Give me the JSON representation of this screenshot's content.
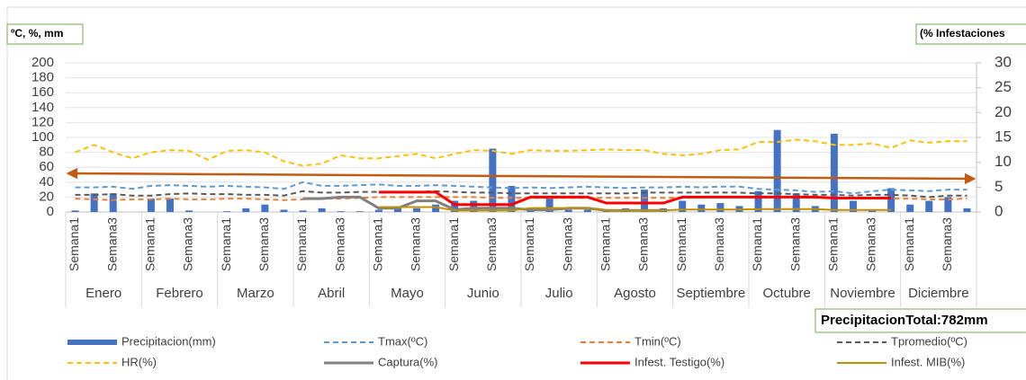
{
  "chart_data": {
    "type": "combo",
    "y_label": "ºC, %, mm",
    "y2_label": "(% Infestaciones",
    "annotation": "PrecipitacionTotal:782mm",
    "groups": [
      "Enero",
      "Febrero",
      "Marzo",
      "Abril",
      "Mayo",
      "Junio",
      "Julio",
      "Agosto",
      "Septiembre",
      "Octubre",
      "Noviembre",
      "Diciembre"
    ],
    "categories": [
      "Semana1",
      null,
      "Semana3",
      null,
      "Semana1",
      null,
      "Semana3",
      null,
      "Semana1",
      null,
      "Semana3",
      null,
      "Semana1",
      null,
      "Semana3",
      null,
      "Semana1",
      null,
      "Semana3",
      null,
      "Semana1",
      null,
      "Semana3",
      null,
      "Semana1",
      null,
      "Semana3",
      null,
      "Semana1",
      null,
      "Semana3",
      null,
      "Semana1",
      null,
      "Semana3",
      null,
      "Semana1",
      null,
      "Semana3",
      null,
      "Semana1",
      null,
      "Semana3",
      null,
      "Semana1",
      null,
      "Semana3",
      null
    ],
    "ylim": [
      0,
      200
    ],
    "yticks": [
      0,
      20,
      40,
      60,
      80,
      100,
      120,
      140,
      160,
      180,
      200
    ],
    "y2lim": [
      0,
      30
    ],
    "y2ticks": [
      0,
      5,
      10,
      15,
      20,
      25,
      30
    ],
    "grid": true,
    "series": [
      {
        "name": "Precipitacion(mm)",
        "type": "bar",
        "color": "#4472c4",
        "values": [
          2,
          25,
          25,
          0,
          18,
          18,
          2,
          0,
          1,
          5,
          10,
          3,
          2,
          5,
          1,
          1,
          3,
          5,
          5,
          10,
          15,
          15,
          85,
          35,
          5,
          18,
          3,
          3,
          3,
          5,
          30,
          5,
          15,
          10,
          12,
          8,
          28,
          110,
          25,
          8,
          105,
          15,
          3,
          32,
          10,
          15,
          20,
          5
        ]
      },
      {
        "name": "Tmax(ºC)",
        "type": "line",
        "dash": true,
        "color": "#5b9bd5",
        "values": [
          33,
          33,
          34,
          31,
          35,
          36,
          35,
          34,
          35,
          34,
          33,
          31,
          40,
          35,
          35,
          36,
          37,
          35,
          35,
          36,
          35,
          34,
          33,
          32,
          33,
          32,
          33,
          34,
          33,
          32,
          33,
          33,
          34,
          33,
          34,
          34,
          31,
          30,
          29,
          27,
          28,
          25,
          28,
          30,
          29,
          28,
          30,
          30
        ]
      },
      {
        "name": "Tmin(ºC)",
        "type": "line",
        "dash": true,
        "color": "#ed7d31",
        "values": [
          18,
          17,
          16,
          17,
          17,
          18,
          17,
          17,
          18,
          18,
          17,
          16,
          17,
          18,
          18,
          19,
          20,
          20,
          20,
          20,
          20,
          20,
          19,
          19,
          19,
          19,
          19,
          19,
          19,
          19,
          19,
          19,
          19,
          20,
          20,
          20,
          20,
          20,
          20,
          19,
          19,
          19,
          19,
          18,
          18,
          17,
          17,
          18
        ]
      },
      {
        "name": "Tpromedio(ºC)",
        "type": "line",
        "dash": true,
        "color": "#595959",
        "values": [
          23,
          23,
          24,
          22,
          22,
          24,
          25,
          24,
          24,
          23,
          23,
          22,
          28,
          26,
          26,
          27,
          27,
          27,
          27,
          28,
          27,
          26,
          26,
          25,
          25,
          25,
          25,
          25,
          25,
          25,
          26,
          26,
          26,
          26,
          26,
          26,
          25,
          25,
          24,
          23,
          23,
          22,
          23,
          23,
          22,
          20,
          22,
          22
        ]
      },
      {
        "name": "HR(%)",
        "type": "line",
        "dash": true,
        "color": "#ffc000",
        "values": [
          80,
          90,
          80,
          72,
          80,
          83,
          82,
          70,
          82,
          83,
          80,
          68,
          62,
          65,
          76,
          72,
          72,
          75,
          78,
          72,
          78,
          83,
          82,
          78,
          83,
          82,
          82,
          83,
          84,
          83,
          83,
          78,
          76,
          78,
          83,
          84,
          94,
          94,
          97,
          95,
          90,
          90,
          92,
          86,
          96,
          93,
          95,
          95
        ]
      },
      {
        "name": "Captura(%)",
        "type": "line",
        "width": 3,
        "color": "#808080",
        "values": [
          null,
          null,
          null,
          null,
          null,
          null,
          null,
          null,
          null,
          null,
          null,
          null,
          18,
          18,
          20,
          20,
          5,
          5,
          15,
          15,
          3,
          5,
          5,
          5,
          3,
          3,
          5,
          5,
          2,
          2,
          2,
          2,
          null,
          null,
          null,
          null,
          null,
          null,
          null,
          null,
          null,
          null,
          null,
          null,
          null,
          null,
          null,
          null
        ]
      },
      {
        "name": "Infest. Testigo(%)",
        "type": "line",
        "axis": "y2",
        "width": 3,
        "color": "#ff0000",
        "values": [
          null,
          null,
          null,
          null,
          null,
          null,
          null,
          null,
          null,
          null,
          null,
          null,
          null,
          null,
          null,
          null,
          4,
          4,
          4,
          4,
          1.5,
          1.5,
          1.5,
          1.5,
          3,
          3,
          3,
          3,
          1.8,
          1.8,
          1.8,
          1.8,
          3,
          3,
          3,
          3,
          3,
          3,
          3,
          3,
          2.8,
          2.8,
          2.8,
          2.8,
          null,
          null,
          null,
          null
        ]
      },
      {
        "name": "Infest. MIB(%)",
        "type": "line",
        "axis": "y2",
        "width": 2,
        "color": "#bf9000",
        "values": [
          null,
          null,
          null,
          null,
          null,
          null,
          null,
          null,
          null,
          null,
          null,
          null,
          null,
          null,
          null,
          null,
          1,
          1,
          1,
          1,
          0.3,
          0.3,
          0.3,
          0.3,
          0.8,
          0.8,
          0.8,
          0.8,
          0.3,
          0.3,
          0.3,
          0.3,
          0.5,
          0.5,
          0.5,
          0.5,
          0.6,
          0.6,
          0.6,
          0.6,
          0.4,
          0.4,
          0.4,
          0.4,
          null,
          null,
          null,
          null
        ]
      }
    ]
  }
}
